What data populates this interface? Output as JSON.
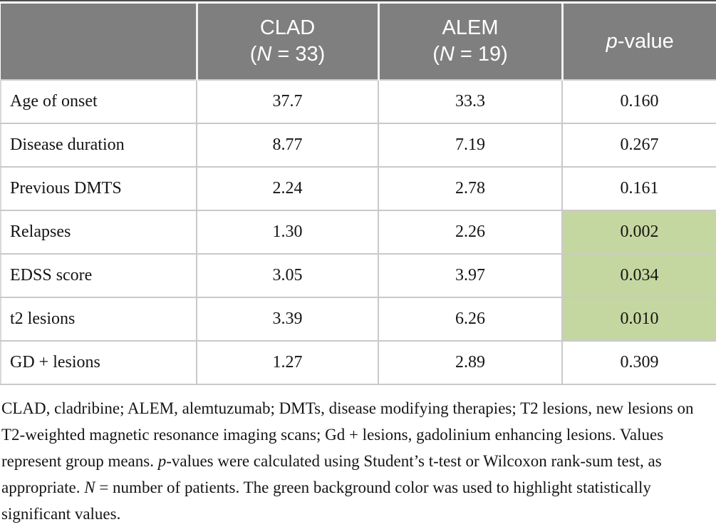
{
  "colors": {
    "header_background": "#7f7f7f",
    "header_text": "#ffffff",
    "significant_highlight": "#c5d7a0",
    "body_text": "#151515",
    "grid_line": "#c9c9c9",
    "top_rule": "#4f4f4f"
  },
  "table": {
    "header_cells": [
      {
        "name": "header-cell-empty",
        "lines": []
      },
      {
        "name": "header-cell-clad",
        "lines": [
          [
            {
              "t": "CLAD"
            }
          ],
          [
            {
              "t": "("
            },
            {
              "t": "N",
              "i": true
            },
            {
              "t": " = 33)"
            }
          ]
        ]
      },
      {
        "name": "header-cell-alem",
        "lines": [
          [
            {
              "t": "ALEM"
            }
          ],
          [
            {
              "t": "("
            },
            {
              "t": "N",
              "i": true
            },
            {
              "t": " = 19)"
            }
          ]
        ]
      },
      {
        "name": "header-cell-pvalue",
        "lines": [
          [
            {
              "t": "p",
              "i": true
            },
            {
              "t": "-value"
            }
          ]
        ]
      }
    ],
    "rows": [
      {
        "label": "Age of onset",
        "clad": "37.7",
        "alem": "33.3",
        "p": "0.160",
        "significant": false
      },
      {
        "label": "Disease duration",
        "clad": "8.77",
        "alem": "7.19",
        "p": "0.267",
        "significant": false
      },
      {
        "label": "Previous DMTS",
        "clad": "2.24",
        "alem": "2.78",
        "p": "0.161",
        "significant": false
      },
      {
        "label": "Relapses",
        "clad": "1.30",
        "alem": "2.26",
        "p": "0.002",
        "significant": true
      },
      {
        "label": "EDSS score",
        "clad": "3.05",
        "alem": "3.97",
        "p": "0.034",
        "significant": true
      },
      {
        "label": "t2 lesions",
        "clad": "3.39",
        "alem": "6.26",
        "p": "0.010",
        "significant": true
      },
      {
        "label": "GD + lesions",
        "clad": "1.27",
        "alem": "2.89",
        "p": "0.309",
        "significant": false
      }
    ]
  },
  "footnote_runs": [
    {
      "t": "CLAD, cladribine; ALEM, alemtuzumab; DMTs, disease modifying therapies; T2 lesions, new lesions on T2-weighted magnetic resonance imaging scans; Gd + lesions, gadolinium enhancing lesions. Values represent group means. "
    },
    {
      "t": "p",
      "i": true
    },
    {
      "t": "-values were calculated using Student’s t-test or Wilcoxon rank-sum test, as appropriate. "
    },
    {
      "t": "N",
      "i": true
    },
    {
      "t": " = number of patients. The green background color was used to highlight statistically significant values."
    }
  ]
}
